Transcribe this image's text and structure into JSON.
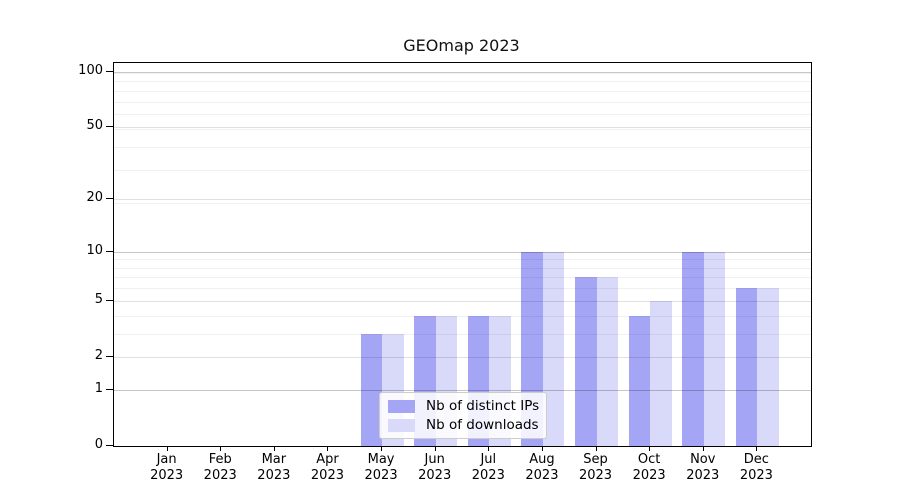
{
  "chart_data": {
    "type": "bar",
    "title": "GEOmap 2023",
    "categories": [
      {
        "month": "Jan",
        "year": "2023"
      },
      {
        "month": "Feb",
        "year": "2023"
      },
      {
        "month": "Mar",
        "year": "2023"
      },
      {
        "month": "Apr",
        "year": "2023"
      },
      {
        "month": "May",
        "year": "2023"
      },
      {
        "month": "Jun",
        "year": "2023"
      },
      {
        "month": "Jul",
        "year": "2023"
      },
      {
        "month": "Aug",
        "year": "2023"
      },
      {
        "month": "Sep",
        "year": "2023"
      },
      {
        "month": "Oct",
        "year": "2023"
      },
      {
        "month": "Nov",
        "year": "2023"
      },
      {
        "month": "Dec",
        "year": "2023"
      }
    ],
    "series": [
      {
        "name": "Nb of distinct IPs",
        "color": "#a5a5f5",
        "values": [
          0,
          0,
          0,
          0,
          3,
          4,
          4,
          10,
          7,
          4,
          10,
          6
        ]
      },
      {
        "name": "Nb of downloads",
        "color": "#d9d9f9",
        "values": [
          0,
          0,
          0,
          0,
          3,
          4,
          4,
          10,
          7,
          5,
          10,
          6
        ]
      }
    ],
    "y_axis": {
      "scale": "log10(1+x)",
      "ticks": [
        0,
        1,
        2,
        5,
        10,
        20,
        50,
        100
      ],
      "strong_gridlines": [
        1,
        10,
        100
      ],
      "minor_gridlines": [
        3,
        4,
        6,
        7,
        8,
        9,
        19,
        29,
        39,
        49,
        59,
        69,
        79,
        89,
        99
      ],
      "range": [
        0,
        112
      ]
    },
    "grid": "on",
    "legend_position": "lower center"
  }
}
